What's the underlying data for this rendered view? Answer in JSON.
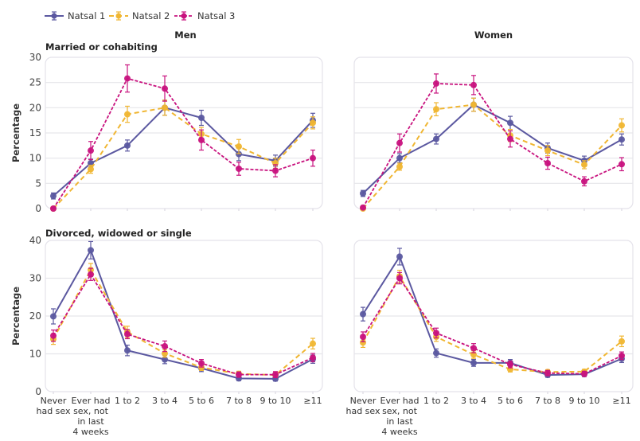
{
  "chart_data": {
    "type": "line",
    "legend": {
      "placement": "top-left",
      "entries": [
        "Natsal 1",
        "Natsal 2",
        "Natsal 3"
      ]
    },
    "series_styles": [
      {
        "name": "Natsal 1",
        "color": "#5b58a0",
        "dash": "solid"
      },
      {
        "name": "Natsal 2",
        "color": "#f0b632",
        "dash": "dashed"
      },
      {
        "name": "Natsal 3",
        "color": "#c8127e",
        "dash": "dotted-dash"
      }
    ],
    "column_titles": [
      "Men",
      "Women"
    ],
    "row_titles": [
      "Married or cohabiting",
      "Divorced, widowed or single"
    ],
    "ylabel": "Percentage",
    "categories": [
      "Never had sex",
      "Ever had sex, not in last 4 weeks",
      "1 to 2",
      "3 to 4",
      "5 to 6",
      "7 to 8",
      "9 to 10",
      "≥11"
    ],
    "category_lines": [
      [
        "Never",
        "had sex"
      ],
      [
        "Ever had",
        "sex, not",
        "in last",
        "4 weeks"
      ],
      [
        "1 to 2"
      ],
      [
        "3 to 4"
      ],
      [
        "5 to 6"
      ],
      [
        "7 to 8"
      ],
      [
        "9 to 10"
      ],
      [
        "≥11"
      ]
    ],
    "panels": [
      {
        "id": "men-married",
        "column": "Men",
        "row": "Married or cohabiting",
        "ylim": [
          0,
          30
        ],
        "yticks": [
          0,
          5,
          10,
          15,
          20,
          25,
          30
        ],
        "series": [
          {
            "name": "Natsal 1",
            "values": [
              2.5,
              9,
              12.5,
              20,
              18,
              10.8,
              9.5,
              17.5
            ],
            "err": [
              0.6,
              0.8,
              1.1,
              1.5,
              1.5,
              1.3,
              1.1,
              1.4
            ]
          },
          {
            "name": "Natsal 2",
            "values": [
              0,
              7.8,
              18.7,
              20,
              14.8,
              12.3,
              9,
              17
            ],
            "err": [
              0.2,
              0.8,
              1.6,
              1.5,
              1.3,
              1.4,
              1.0,
              1.2
            ]
          },
          {
            "name": "Natsal 3",
            "values": [
              0,
              11.5,
              25.8,
              23.8,
              13.6,
              7.9,
              7.5,
              10
            ],
            "err": [
              0.2,
              1.8,
              2.7,
              2.5,
              2.0,
              1.3,
              1.2,
              1.6
            ]
          }
        ]
      },
      {
        "id": "women-married",
        "column": "Women",
        "row": "Married or cohabiting",
        "ylim": [
          0,
          30
        ],
        "yticks": [
          0,
          5,
          10,
          15,
          20,
          25,
          30
        ],
        "series": [
          {
            "name": "Natsal 1",
            "values": [
              3,
              10,
              13.8,
              20.6,
              17,
              12,
              9.5,
              13.7
            ],
            "err": [
              0.6,
              0.9,
              1.0,
              1.3,
              1.3,
              1.0,
              0.9,
              1.1
            ]
          },
          {
            "name": "Natsal 2",
            "values": [
              0,
              8.3,
              19.7,
              20.6,
              14.5,
              11.5,
              8.7,
              16.5
            ],
            "err": [
              0.2,
              0.7,
              1.3,
              1.3,
              1.2,
              1.0,
              0.8,
              1.3
            ]
          },
          {
            "name": "Natsal 3",
            "values": [
              0.2,
              13,
              24.8,
              24.5,
              13.8,
              9,
              5.4,
              8.8
            ],
            "err": [
              0.2,
              1.8,
              1.9,
              1.9,
              1.6,
              1.2,
              0.9,
              1.3
            ]
          }
        ]
      },
      {
        "id": "men-single",
        "column": "Men",
        "row": "Divorced, widowed or single",
        "ylim": [
          0,
          40
        ],
        "yticks": [
          0,
          10,
          20,
          30,
          40
        ],
        "series": [
          {
            "name": "Natsal 1",
            "values": [
              19.9,
              37.4,
              10.9,
              8.5,
              6.2,
              3.5,
              3.4,
              8.6
            ],
            "err": [
              2.0,
              2.3,
              1.4,
              1.1,
              0.9,
              0.6,
              0.6,
              1.1
            ]
          },
          {
            "name": "Natsal 2",
            "values": [
              13.9,
              32.2,
              15.8,
              10.1,
              6.4,
              4.7,
              4.4,
              12.7
            ],
            "err": [
              1.4,
              1.7,
              1.5,
              1.0,
              0.8,
              0.7,
              0.6,
              1.4
            ]
          },
          {
            "name": "Natsal 3",
            "values": [
              14.8,
              31,
              15.2,
              12,
              7.5,
              4.5,
              4.5,
              9
            ],
            "err": [
              1.5,
              1.6,
              1.2,
              1.4,
              1.0,
              0.7,
              0.8,
              1.1
            ]
          }
        ]
      },
      {
        "id": "women-single",
        "column": "Women",
        "row": "Divorced, widowed or single",
        "ylim": [
          0,
          40
        ],
        "yticks": [
          0,
          10,
          20,
          30,
          40
        ],
        "series": [
          {
            "name": "Natsal 1",
            "values": [
              20.5,
              35.7,
              10.2,
              7.6,
              7.6,
              4.4,
              4.6,
              8.7
            ],
            "err": [
              1.8,
              2.2,
              1.1,
              0.9,
              0.9,
              0.6,
              0.6,
              1.0
            ]
          },
          {
            "name": "Natsal 2",
            "values": [
              13,
              30.5,
              14.5,
              9.8,
              5.9,
              5.2,
              5.3,
              13.3
            ],
            "err": [
              1.3,
              1.6,
              1.2,
              1.0,
              0.7,
              0.6,
              0.6,
              1.4
            ]
          },
          {
            "name": "Natsal 3",
            "values": [
              14.5,
              30,
              15.5,
              11.5,
              7.2,
              4.9,
              4.7,
              9.5
            ],
            "err": [
              1.3,
              1.5,
              1.3,
              1.2,
              0.9,
              0.7,
              0.7,
              1.0
            ]
          }
        ]
      }
    ]
  }
}
